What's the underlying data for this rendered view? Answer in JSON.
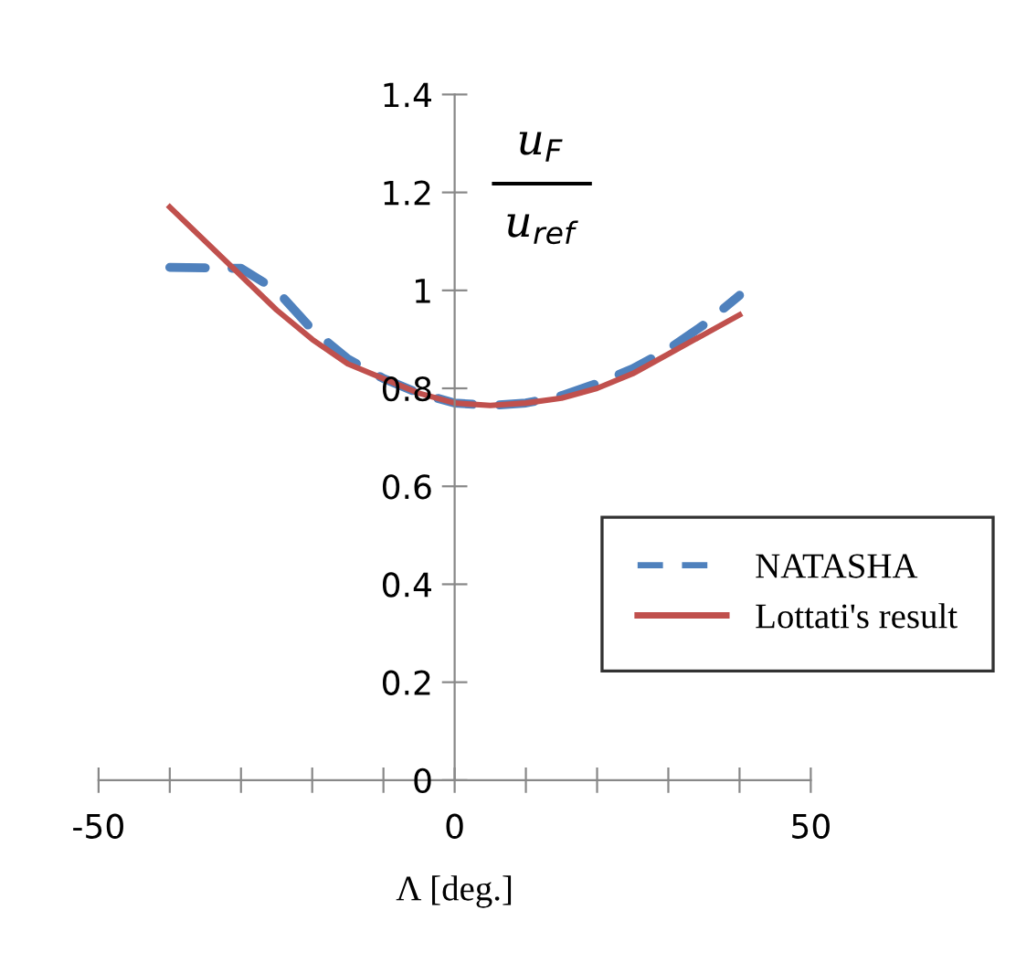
{
  "chart_data": {
    "type": "line",
    "xlabel": "Λ [deg.]",
    "annotations": [
      "u$_{F}$",
      "u$_{ref}$"
    ],
    "x": [
      -40,
      -30,
      -25,
      -20,
      -15,
      -10,
      -5,
      0,
      5,
      10,
      15,
      20,
      25,
      30,
      35,
      40
    ],
    "series": [
      {
        "name": "NATASHA",
        "color": "#4f81bd",
        "line_style": "dashed",
        "values": [
          1.047,
          1.045,
          1.0,
          0.92,
          0.86,
          0.82,
          0.79,
          0.77,
          0.765,
          0.77,
          0.785,
          0.81,
          0.84,
          0.88,
          0.93,
          0.99
        ]
      },
      {
        "name": "Lottati's result",
        "color": "#c0504d",
        "line_style": "solid",
        "values": [
          1.17,
          1.03,
          0.96,
          0.9,
          0.85,
          0.82,
          0.79,
          0.77,
          0.765,
          0.77,
          0.78,
          0.8,
          0.83,
          0.87,
          0.91,
          0.95
        ]
      }
    ],
    "xlim": [
      -50,
      50
    ],
    "xticks": [
      -50,
      {
        "value": -40,
        "label": null
      },
      {
        "value": -30,
        "label": null
      },
      {
        "value": -20,
        "label": null
      },
      {
        "value": -10,
        "label": null
      },
      0,
      {
        "value": 10,
        "label": null
      },
      {
        "value": 20,
        "label": null
      },
      {
        "value": 30,
        "label": null
      },
      {
        "value": 40,
        "label": null
      },
      50
    ],
    "ylim": [
      0,
      1.4
    ],
    "yticks": [
      0,
      0.2,
      0.4,
      0.6,
      0.8,
      1,
      1.2,
      1.4
    ],
    "grid": false,
    "legend": "right"
  }
}
